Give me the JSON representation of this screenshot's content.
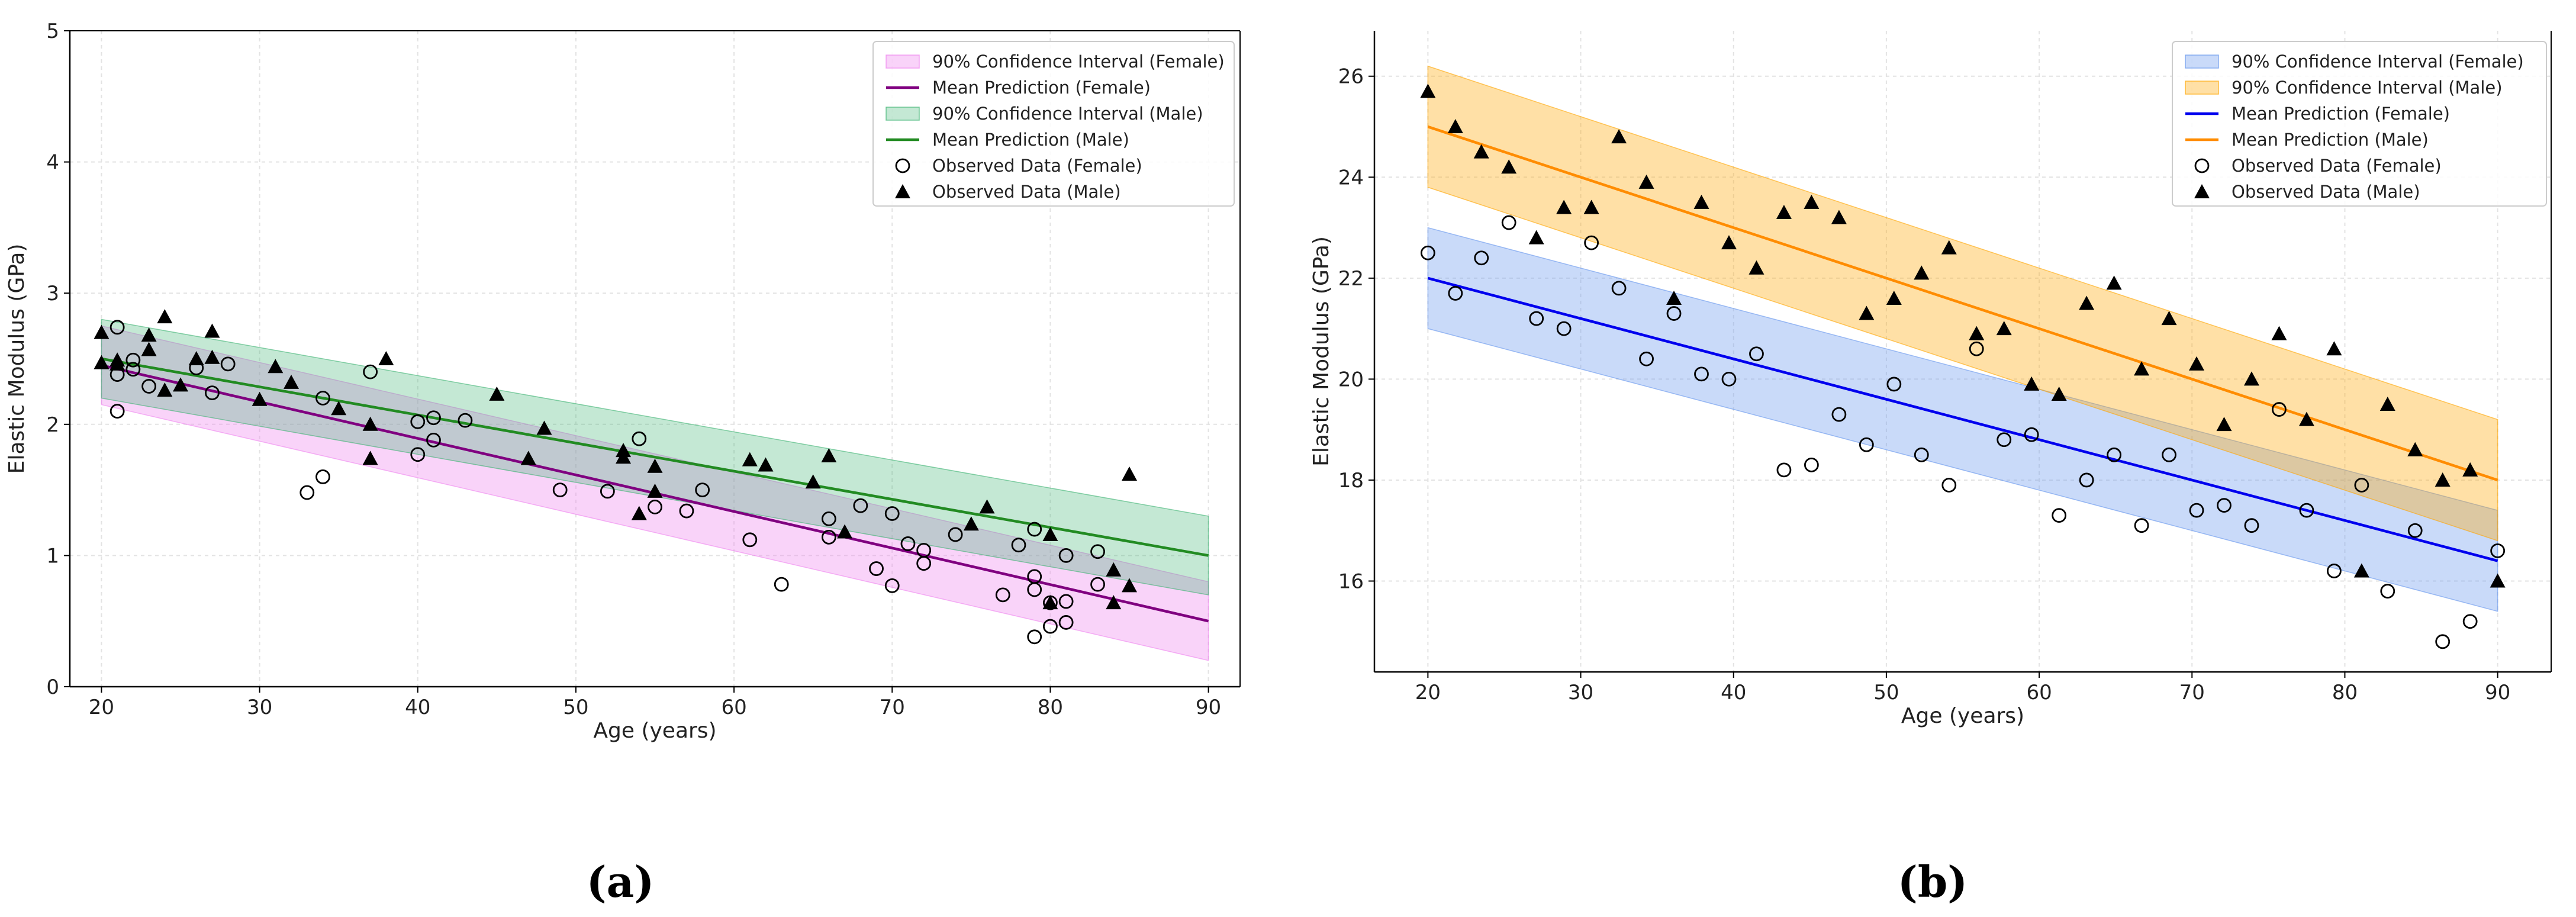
{
  "figure": {
    "panel_labels": [
      "(a)",
      "(b)"
    ]
  },
  "chart_data": [
    {
      "type": "scatter",
      "panel": "(a)",
      "title": "",
      "xlabel": "Age (years)",
      "ylabel": "Elastic Modulus (GPa)",
      "xlim": [
        18,
        92
      ],
      "ylim": [
        0,
        5
      ],
      "xticks": [
        20,
        30,
        40,
        50,
        60,
        70,
        80,
        90
      ],
      "yticks": [
        0,
        1,
        2,
        3,
        4,
        5
      ],
      "grid": true,
      "legend_position": "top-right",
      "legend": [
        {
          "label": "90% Confidence Interval (Female)",
          "kind": "band",
          "ref": "female_band"
        },
        {
          "label": "Mean Prediction (Female)",
          "kind": "line",
          "ref": "female_line"
        },
        {
          "label": "90% Confidence Interval (Male)",
          "kind": "band",
          "ref": "male_band"
        },
        {
          "label": "Mean Prediction (Male)",
          "kind": "line",
          "ref": "male_line"
        },
        {
          "label": "Observed Data (Female)",
          "kind": "circle",
          "ref": "female_obs"
        },
        {
          "label": "Observed Data (Male)",
          "kind": "triangle",
          "ref": "male_obs"
        }
      ],
      "series": {
        "female_line": {
          "name": "Mean Prediction (Female)",
          "color": "#800080",
          "x": [
            20,
            90
          ],
          "y": [
            2.45,
            0.5
          ]
        },
        "male_line": {
          "name": "Mean Prediction (Male)",
          "color": "#228B22",
          "x": [
            20,
            90
          ],
          "y": [
            2.5,
            1.0
          ]
        },
        "female_band": {
          "name": "90% Confidence Interval (Female)",
          "color": "#EE82EE",
          "opacity": 0.35,
          "x": [
            20,
            90
          ],
          "lower": [
            2.15,
            0.2
          ],
          "upper": [
            2.75,
            0.8
          ]
        },
        "male_band": {
          "name": "90% Confidence Interval (Male)",
          "color": "#3CB371",
          "opacity": 0.3,
          "x": [
            20,
            90
          ],
          "lower": [
            2.2,
            0.7
          ],
          "upper": [
            2.8,
            1.3
          ]
        },
        "female_obs": {
          "name": "Observed Data (Female)",
          "x": [
            21,
            21,
            21,
            22,
            22,
            23,
            26,
            27,
            28,
            33,
            34,
            34,
            37,
            40,
            40,
            41,
            41,
            43,
            49,
            52,
            54,
            55,
            57,
            58,
            61,
            63,
            66,
            66,
            68,
            69,
            70,
            70,
            71,
            72,
            72,
            74,
            77,
            78,
            79,
            79,
            79,
            79,
            80,
            80,
            81,
            81,
            81,
            83,
            83
          ],
          "y": [
            2.74,
            2.38,
            2.1,
            2.49,
            2.42,
            2.29,
            2.43,
            2.24,
            2.46,
            1.48,
            1.6,
            2.2,
            2.4,
            2.02,
            1.77,
            2.05,
            1.88,
            2.03,
            1.5,
            1.49,
            1.89,
            1.37,
            1.34,
            1.5,
            1.12,
            0.78,
            1.28,
            1.14,
            1.38,
            0.9,
            0.77,
            1.32,
            1.09,
            1.04,
            0.94,
            1.16,
            0.7,
            1.08,
            0.84,
            0.74,
            1.2,
            0.38,
            0.46,
            0.64,
            0.49,
            0.65,
            1.0,
            1.03,
            0.78
          ]
        },
        "male_obs": {
          "name": "Observed Data (Male)",
          "x": [
            20,
            20,
            21,
            21,
            23,
            23,
            24,
            24,
            25,
            26,
            27,
            27,
            30,
            31,
            32,
            35,
            37,
            37,
            38,
            45,
            47,
            48,
            53,
            53,
            54,
            55,
            55,
            61,
            62,
            65,
            66,
            67,
            75,
            76,
            80,
            80,
            84,
            84,
            85,
            85
          ],
          "y": [
            2.7,
            2.47,
            2.49,
            2.46,
            2.68,
            2.57,
            2.82,
            2.26,
            2.3,
            2.5,
            2.71,
            2.51,
            2.19,
            2.44,
            2.32,
            2.12,
            2.0,
            1.74,
            2.5,
            2.23,
            1.74,
            1.97,
            1.8,
            1.75,
            1.32,
            1.68,
            1.49,
            1.73,
            1.69,
            1.56,
            1.76,
            1.18,
            1.24,
            1.37,
            1.16,
            0.64,
            0.89,
            0.64,
            0.77,
            1.62
          ]
        }
      }
    },
    {
      "type": "scatter",
      "panel": "(b)",
      "title": "",
      "xlabel": "Age (years)",
      "ylabel": "Elastic Modulus (GPa)",
      "xlim": [
        16.5,
        93.5
      ],
      "ylim": [
        14.2,
        26.9
      ],
      "xticks": [
        20,
        30,
        40,
        50,
        60,
        70,
        80,
        90
      ],
      "yticks": [
        16,
        18,
        20,
        22,
        24,
        26
      ],
      "grid": true,
      "legend_position": "top-right",
      "legend": [
        {
          "label": "90% Confidence Interval (Female)",
          "kind": "band",
          "ref": "female_band"
        },
        {
          "label": "90% Confidence Interval (Male)",
          "kind": "band",
          "ref": "male_band"
        },
        {
          "label": "Mean Prediction (Female)",
          "kind": "line",
          "ref": "female_line"
        },
        {
          "label": "Mean Prediction (Male)",
          "kind": "line",
          "ref": "male_line"
        },
        {
          "label": "Observed Data (Female)",
          "kind": "circle",
          "ref": "female_obs"
        },
        {
          "label": "Observed Data (Male)",
          "kind": "triangle",
          "ref": "male_obs"
        }
      ],
      "series": {
        "female_line": {
          "name": "Mean Prediction (Female)",
          "color": "#0000EE",
          "x": [
            20,
            90
          ],
          "y": [
            22.0,
            16.4
          ]
        },
        "male_line": {
          "name": "Mean Prediction (Male)",
          "color": "#FF8C00",
          "x": [
            20,
            90
          ],
          "y": [
            25.0,
            18.0
          ]
        },
        "female_band": {
          "name": "90% Confidence Interval (Female)",
          "color": "#6495ED",
          "opacity": 0.35,
          "x": [
            20,
            90
          ],
          "lower": [
            21.0,
            15.4
          ],
          "upper": [
            23.0,
            17.4
          ]
        },
        "male_band": {
          "name": "90% Confidence Interval (Male)",
          "color": "#FFA500",
          "opacity": 0.35,
          "x": [
            20,
            90
          ],
          "lower": [
            23.8,
            16.8
          ],
          "upper": [
            26.2,
            19.2
          ]
        },
        "female_obs": {
          "name": "Observed Data (Female)",
          "x": [
            20,
            21.8,
            23.5,
            25.3,
            27.1,
            28.9,
            30.7,
            32.5,
            34.3,
            36.1,
            37.9,
            39.7,
            41.5,
            43.3,
            45.1,
            46.9,
            48.7,
            50.5,
            52.3,
            54.1,
            55.9,
            57.7,
            59.5,
            61.3,
            63.1,
            64.9,
            66.7,
            68.5,
            70.3,
            72.1,
            73.9,
            75.7,
            77.5,
            79.3,
            81.1,
            82.8,
            84.6,
            86.4,
            88.2,
            90
          ],
          "y": [
            22.5,
            21.7,
            22.4,
            23.1,
            21.2,
            21.0,
            22.7,
            21.8,
            20.4,
            21.3,
            20.1,
            20.0,
            20.5,
            18.2,
            18.3,
            19.3,
            18.7,
            19.9,
            18.5,
            17.9,
            20.6,
            18.8,
            18.9,
            17.3,
            18.0,
            18.5,
            17.1,
            18.5,
            17.4,
            17.5,
            17.1,
            19.4,
            17.4,
            16.2,
            17.9,
            15.8,
            17.0,
            14.8,
            15.2,
            16.6
          ]
        },
        "male_obs": {
          "name": "Observed Data (Male)",
          "x": [
            20,
            21.8,
            23.5,
            25.3,
            27.1,
            28.9,
            30.7,
            32.5,
            34.3,
            36.1,
            37.9,
            39.7,
            41.5,
            43.3,
            45.1,
            46.9,
            48.7,
            50.5,
            52.3,
            54.1,
            55.9,
            57.7,
            59.5,
            61.3,
            63.1,
            64.9,
            66.7,
            68.5,
            70.3,
            72.1,
            73.9,
            75.7,
            77.5,
            79.3,
            81.1,
            82.8,
            84.6,
            86.4,
            88.2,
            90
          ],
          "y": [
            25.7,
            25.0,
            24.5,
            24.2,
            22.8,
            23.4,
            23.4,
            24.8,
            23.9,
            21.6,
            23.5,
            22.7,
            22.2,
            23.3,
            23.5,
            23.2,
            21.3,
            21.6,
            22.1,
            22.6,
            20.9,
            21.0,
            19.9,
            19.7,
            21.5,
            21.9,
            20.2,
            21.2,
            20.3,
            19.1,
            20.0,
            20.9,
            19.2,
            20.6,
            16.2,
            19.5,
            18.6,
            18.0,
            18.2,
            16.0
          ]
        }
      }
    }
  ]
}
